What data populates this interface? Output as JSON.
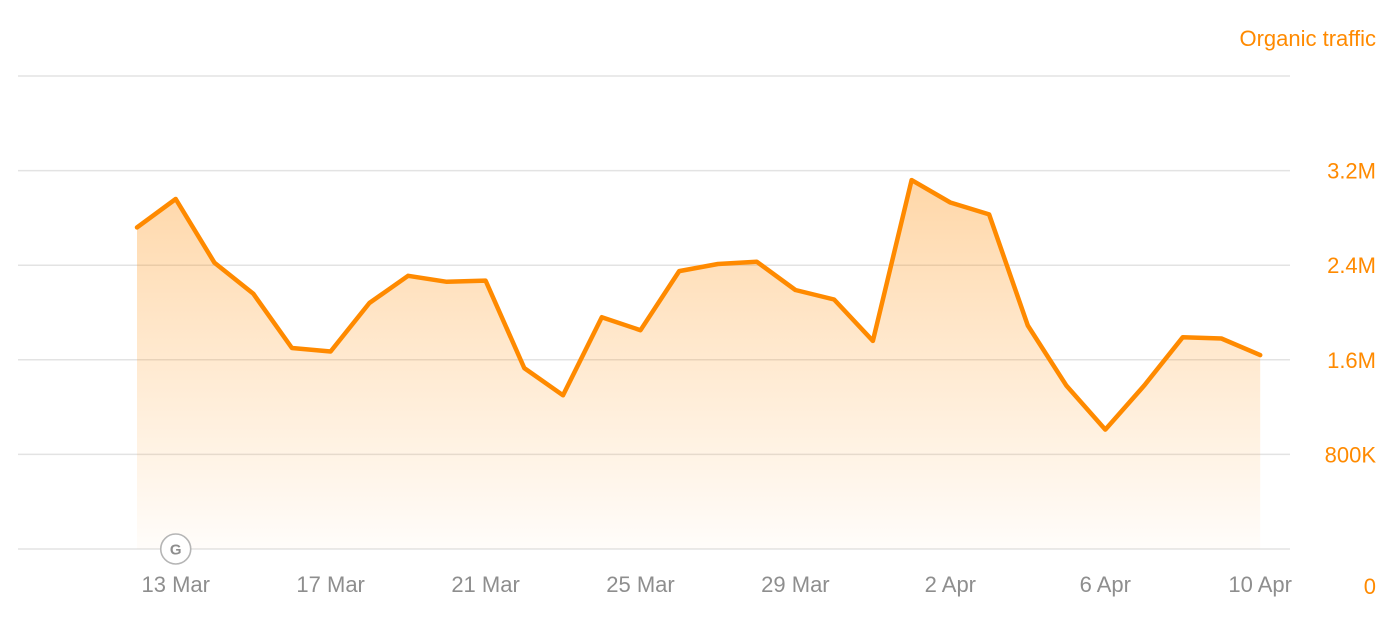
{
  "chart_data": {
    "type": "area",
    "title": "",
    "xlabel": "",
    "ylabel": "Organic traffic",
    "ylim": [
      0,
      4000000
    ],
    "grid": true,
    "colors": {
      "line": "#ff8a00",
      "axis_text": "#ff8a00",
      "x_text": "#8e8e8e",
      "grid": "#e3e3e3"
    },
    "x_tick_labels": [
      "13 Mar",
      "17 Mar",
      "21 Mar",
      "25 Mar",
      "29 Mar",
      "2 Apr",
      "6 Apr",
      "10 Apr"
    ],
    "y_ticks": [
      0,
      800000,
      1600000,
      2400000,
      3200000
    ],
    "y_tick_labels": [
      "0",
      "800K",
      "1.6M",
      "2.4M",
      "3.2M"
    ],
    "annotations": [
      {
        "x": "13 Mar",
        "label": "G",
        "icon": "google-update-icon"
      }
    ],
    "series": [
      {
        "name": "Organic traffic",
        "x": [
          "12 Mar",
          "13 Mar",
          "14 Mar",
          "15 Mar",
          "16 Mar",
          "17 Mar",
          "18 Mar",
          "19 Mar",
          "20 Mar",
          "21 Mar",
          "22 Mar",
          "23 Mar",
          "24 Mar",
          "25 Mar",
          "26 Mar",
          "27 Mar",
          "28 Mar",
          "29 Mar",
          "30 Mar",
          "31 Mar",
          "1 Apr",
          "2 Apr",
          "3 Apr",
          "4 Apr",
          "5 Apr",
          "6 Apr",
          "7 Apr",
          "8 Apr",
          "9 Apr",
          "10 Apr"
        ],
        "values": [
          2720000,
          2960000,
          2420000,
          2160000,
          1700000,
          1670000,
          2080000,
          2310000,
          2260000,
          2270000,
          1530000,
          1300000,
          1960000,
          1850000,
          2350000,
          2410000,
          2430000,
          2190000,
          2110000,
          1760000,
          3120000,
          2930000,
          2830000,
          1890000,
          1380000,
          1010000,
          1380000,
          1790000,
          1780000,
          1640000
        ]
      }
    ]
  }
}
